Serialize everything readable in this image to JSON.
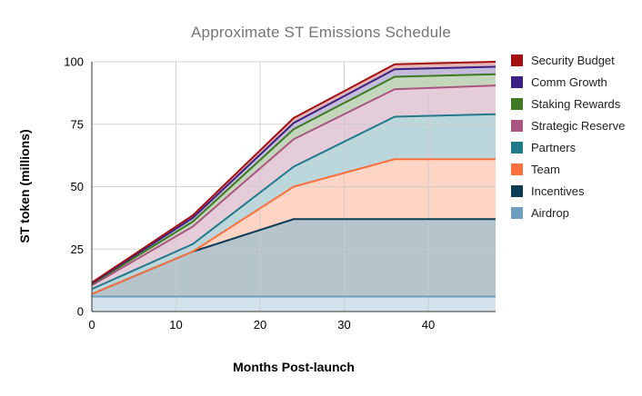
{
  "chart_data": {
    "type": "area",
    "stacked": true,
    "title": "Approximate ST Emissions Schedule",
    "xlabel": "Months Post-launch",
    "ylabel": "ST token (millions)",
    "x": [
      0,
      12,
      24,
      36,
      48
    ],
    "xlim": [
      0,
      48
    ],
    "ylim": [
      0,
      100
    ],
    "xticks": [
      0,
      10,
      20,
      30,
      40
    ],
    "yticks": [
      0,
      25,
      50,
      75,
      100
    ],
    "grid": true,
    "legend_position": "right",
    "series": [
      {
        "name": "Airdrop",
        "color": "#6f9fc0",
        "values": [
          6,
          6,
          6,
          6,
          6
        ]
      },
      {
        "name": "Incentives",
        "color": "#0c3d55",
        "values": [
          1,
          18,
          31,
          31,
          31
        ]
      },
      {
        "name": "Team",
        "color": "#fb703c",
        "values": [
          0,
          0,
          13,
          24,
          24
        ]
      },
      {
        "name": "Partners",
        "color": "#20798c",
        "values": [
          2,
          3,
          8,
          17,
          18
        ]
      },
      {
        "name": "Strategic Reserve",
        "color": "#aa5580",
        "values": [
          1.5,
          7,
          11,
          11,
          11.5
        ]
      },
      {
        "name": "Staking Rewards",
        "color": "#3d7a20",
        "values": [
          0.5,
          2,
          4,
          5,
          4.5
        ]
      },
      {
        "name": "Comm Growth",
        "color": "#3b2183",
        "values": [
          0.3,
          1.5,
          2.5,
          3,
          3
        ]
      },
      {
        "name": "Security Budget",
        "color": "#a50e0e",
        "values": [
          0.3,
          1,
          2,
          2,
          2
        ]
      }
    ],
    "legend_order": [
      "Security Budget",
      "Comm Growth",
      "Staking Rewards",
      "Strategic Reserve",
      "Partners",
      "Team",
      "Incentives",
      "Airdrop"
    ]
  },
  "style": {
    "title_color": "#757575",
    "axis_color": "#333333",
    "grid_color": "#cccccc",
    "tick_color": "#000000",
    "fill_opacity": 0.3
  }
}
